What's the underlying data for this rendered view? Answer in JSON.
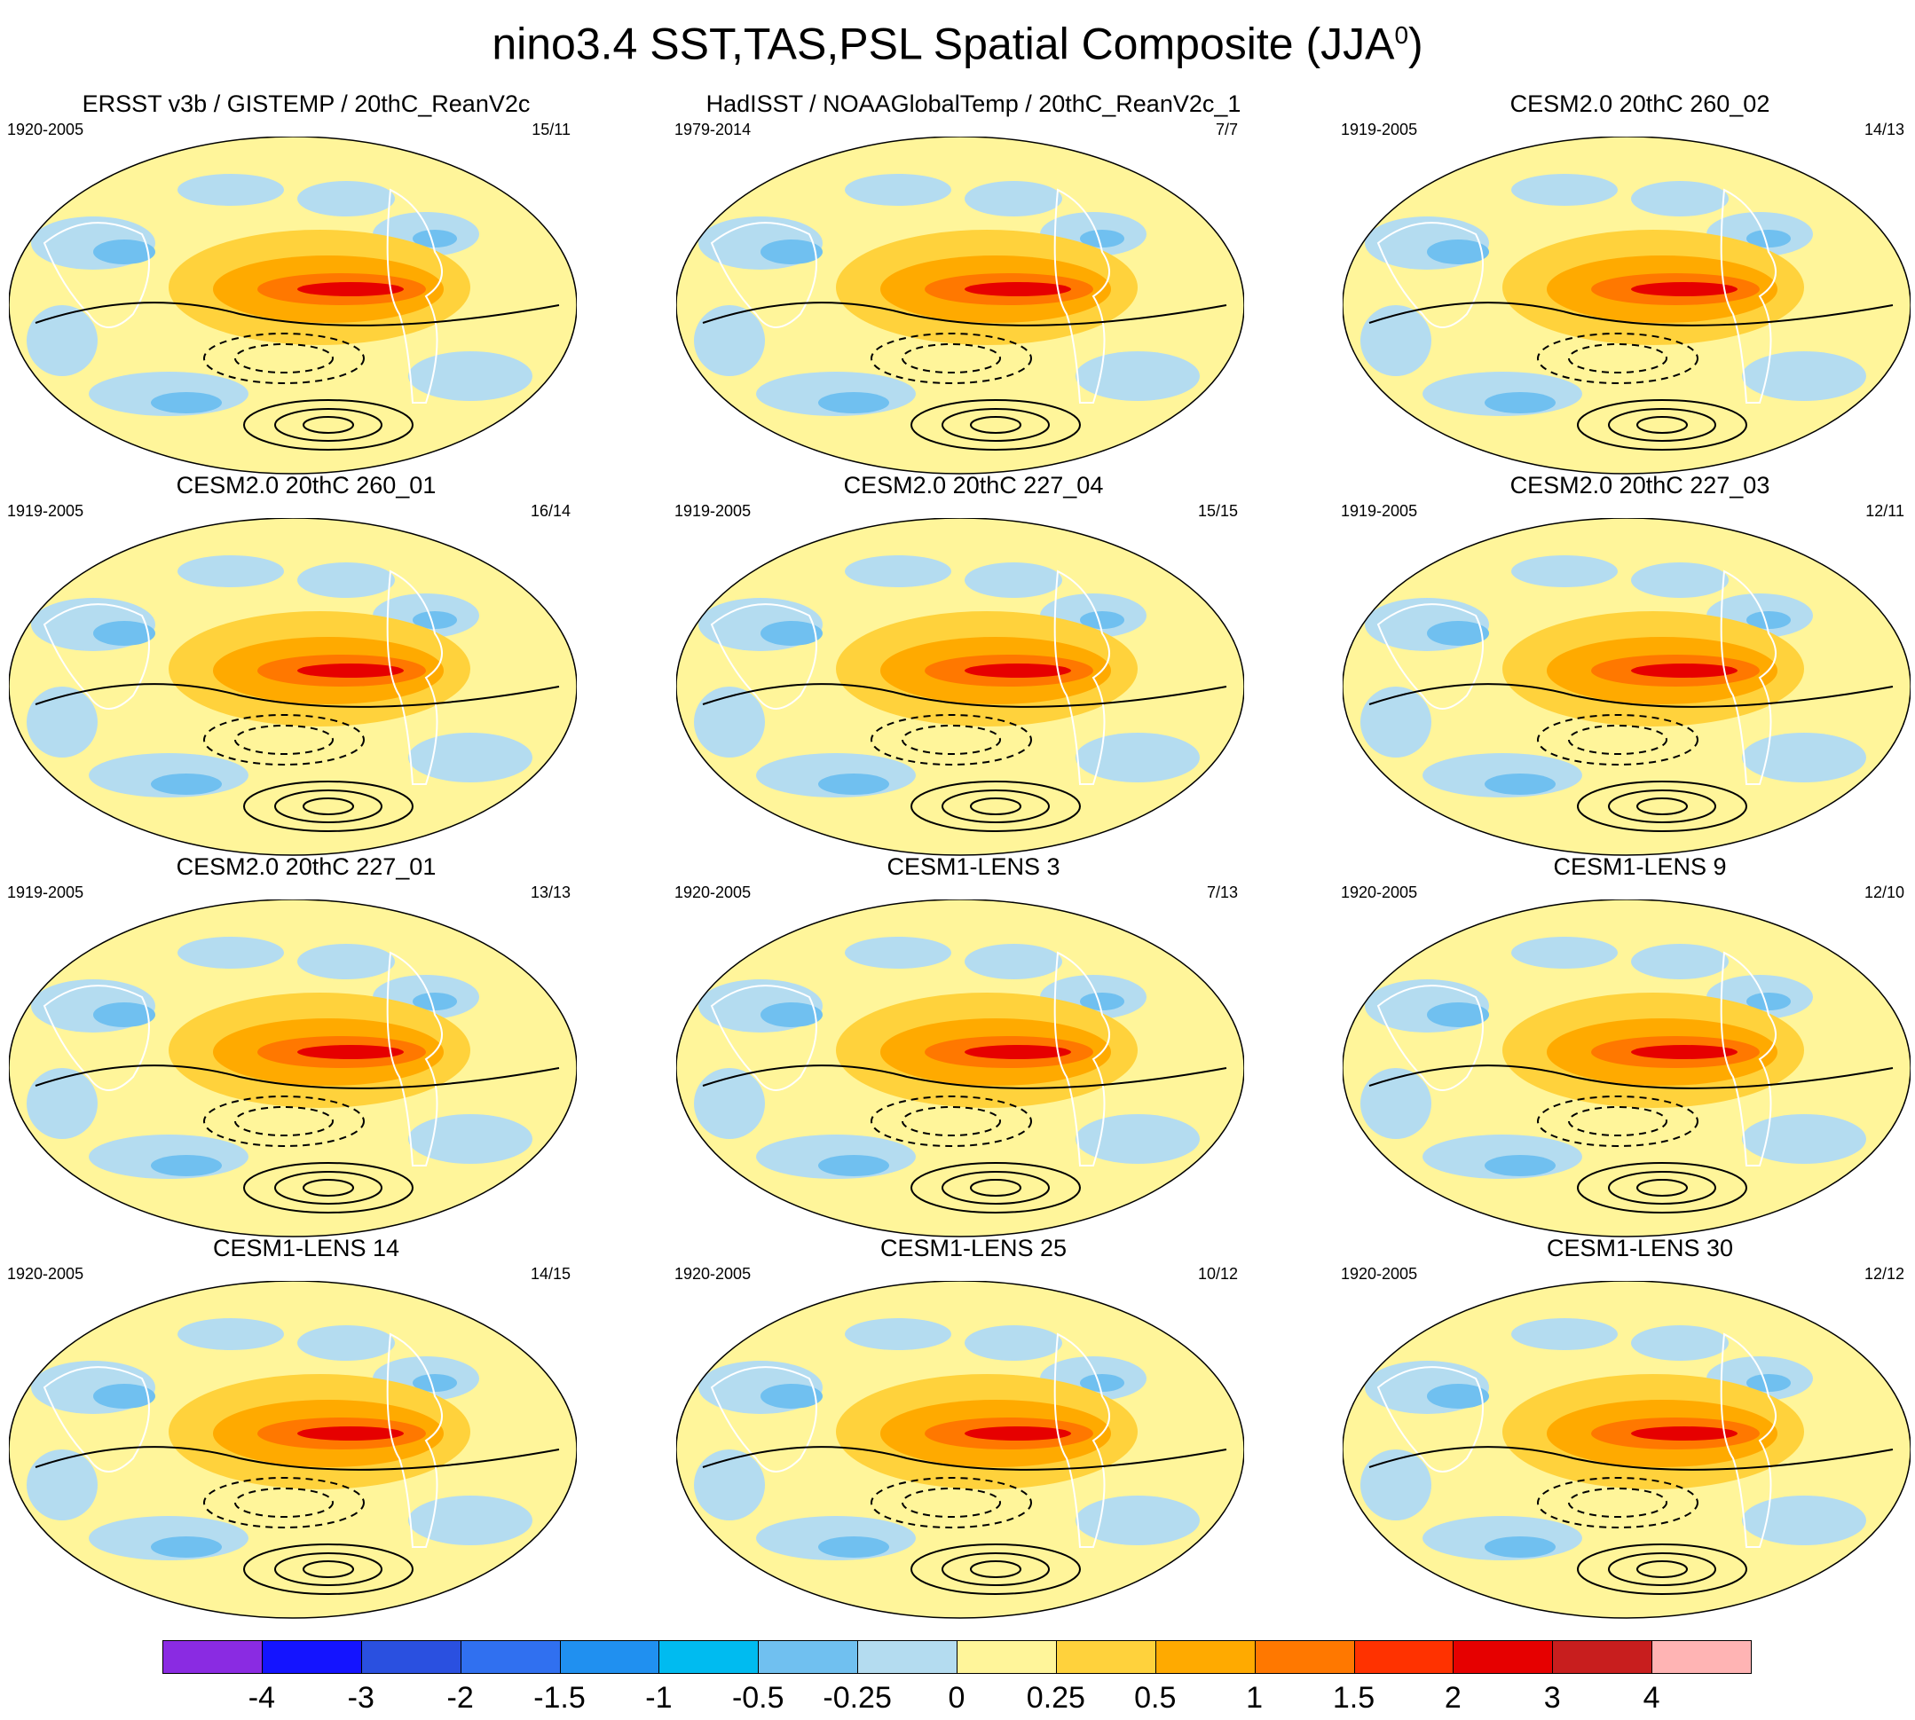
{
  "title_main": "nino3.4 SST,TAS,PSL Spatial Composite (JJA",
  "title_sup": "0",
  "title_close": ")",
  "panels": [
    {
      "title": "ERSST v3b / GISTEMP / 20thC_ReanV2c",
      "period": "1920-2005",
      "count": "15/11"
    },
    {
      "title": "HadISST / NOAAGlobalTemp / 20thC_ReanV2c_1",
      "period": "1979-2014",
      "count": "7/7"
    },
    {
      "title": "CESM2.0 20thC 260_02",
      "period": "1919-2005",
      "count": "14/13"
    },
    {
      "title": "CESM2.0 20thC 260_01",
      "period": "1919-2005",
      "count": "16/14"
    },
    {
      "title": "CESM2.0 20thC 227_04",
      "period": "1919-2005",
      "count": "15/15"
    },
    {
      "title": "CESM2.0 20thC 227_03",
      "period": "1919-2005",
      "count": "12/11"
    },
    {
      "title": "CESM2.0 20thC 227_01",
      "period": "1919-2005",
      "count": "13/13"
    },
    {
      "title": "CESM1-LENS 3",
      "period": "1920-2005",
      "count": "7/13"
    },
    {
      "title": "CESM1-LENS 9",
      "period": "1920-2005",
      "count": "12/10"
    },
    {
      "title": "CESM1-LENS 14",
      "period": "1920-2005",
      "count": "14/15"
    },
    {
      "title": "CESM1-LENS 25",
      "period": "1920-2005",
      "count": "10/12"
    },
    {
      "title": "CESM1-LENS 30",
      "period": "1920-2005",
      "count": "12/12"
    }
  ],
  "colorbar": {
    "colors": [
      "#8a2be2",
      "#1414ff",
      "#2a50e0",
      "#3070f0",
      "#2090f0",
      "#00bbf0",
      "#70c0f0",
      "#b4dcf0",
      "#fff59a",
      "#ffd23c",
      "#ffaa00",
      "#ff7800",
      "#ff3200",
      "#e60000",
      "#c81e1e",
      "#ffb4b4"
    ],
    "labels": [
      "-4",
      "-3",
      "-2",
      "-1.5",
      "-1",
      "-0.5",
      "-0.25",
      "0",
      "0.25",
      "0.5",
      "1",
      "1.5",
      "2",
      "3",
      "4"
    ]
  }
}
